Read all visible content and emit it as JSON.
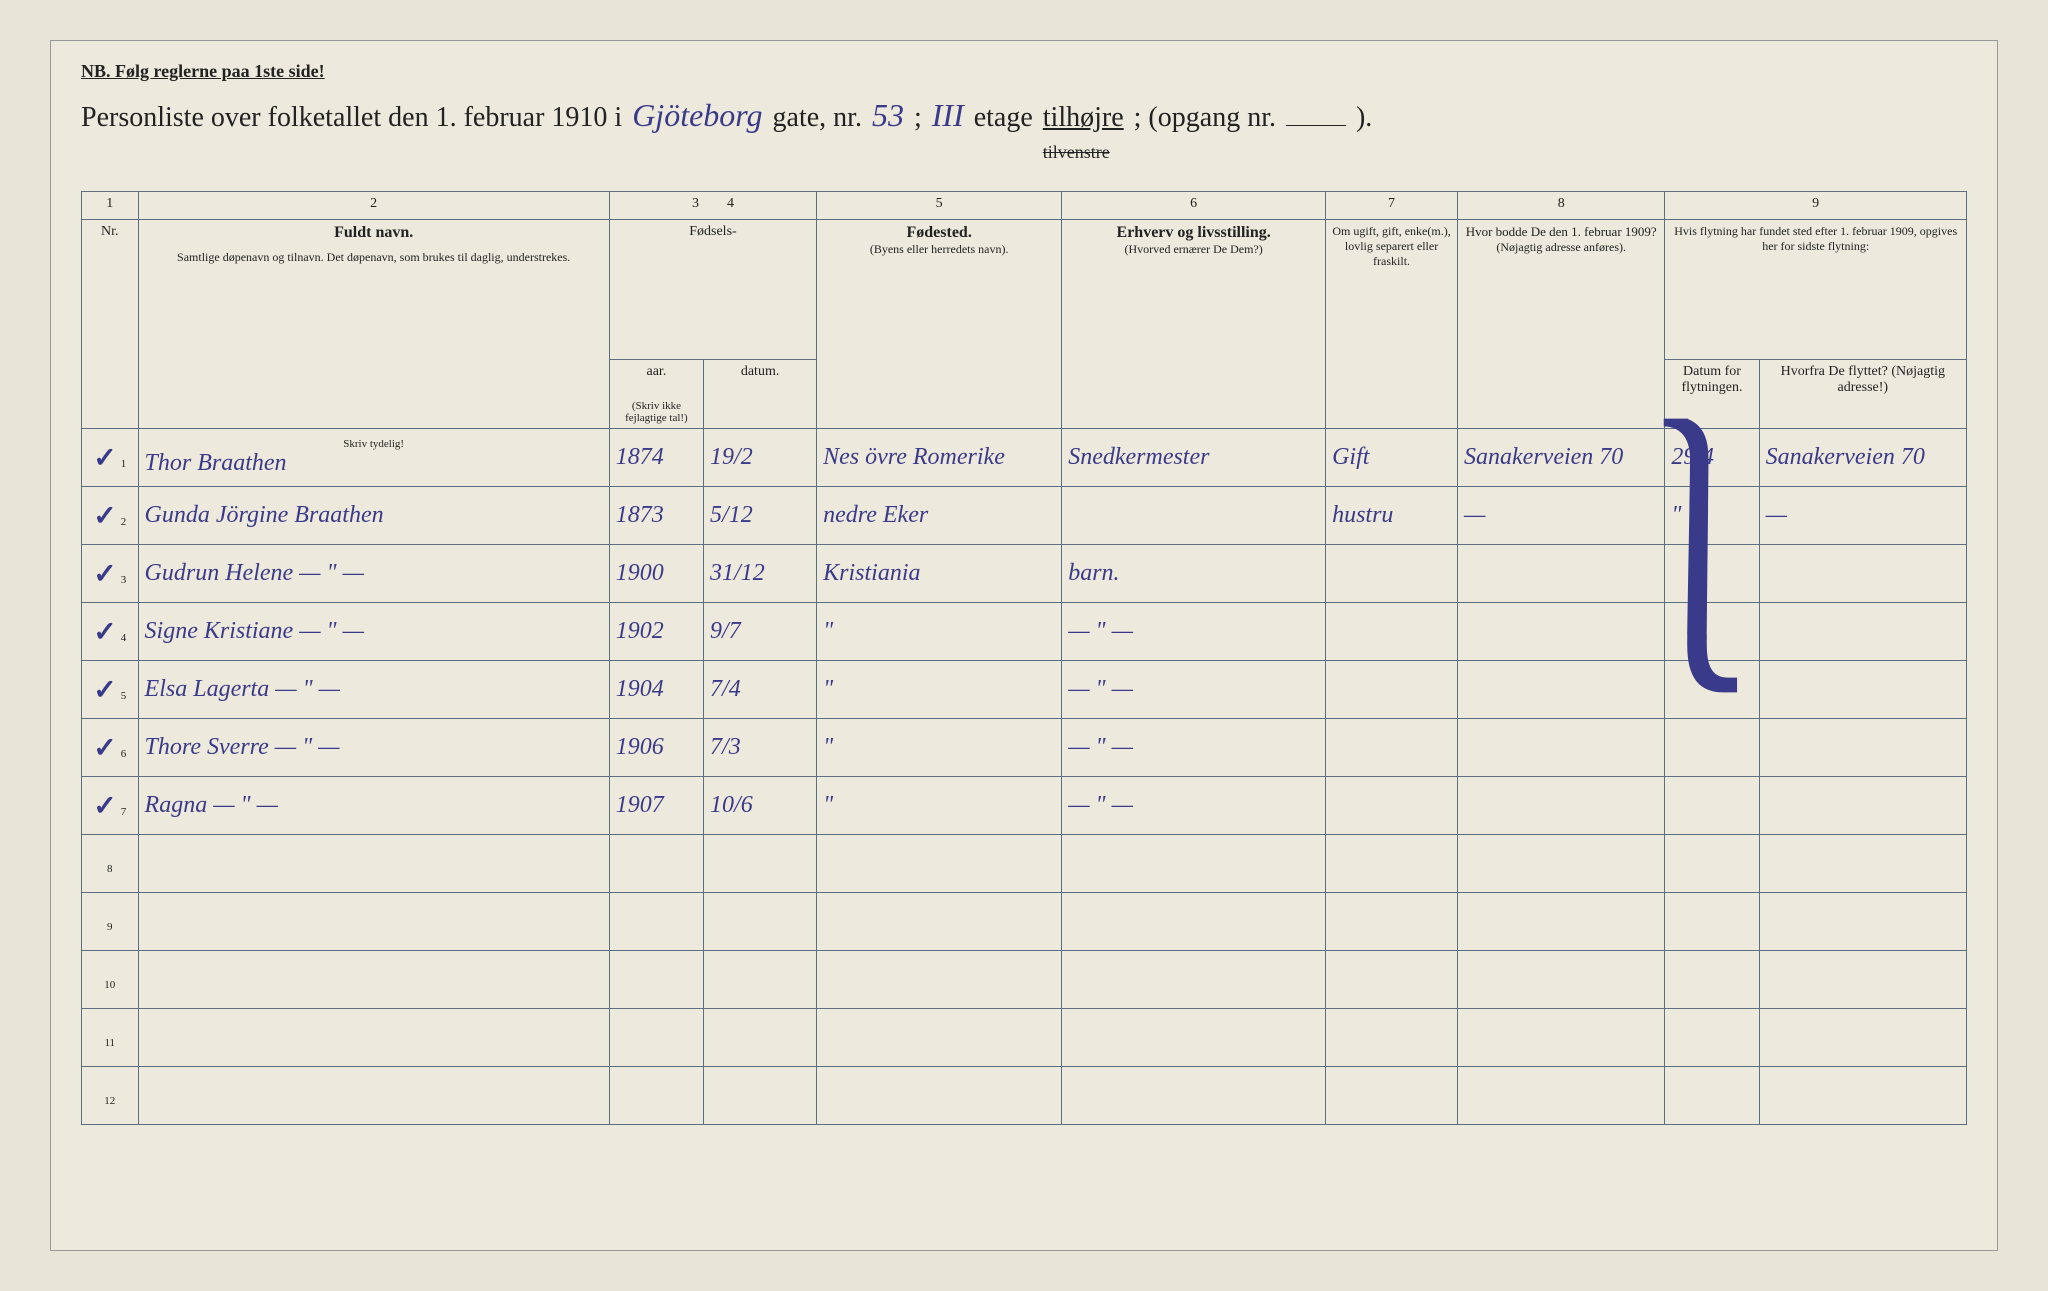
{
  "header_note": "NB.  Følg reglerne paa 1ste side!",
  "title": {
    "prefix": "Personliste over folketallet den 1. februar 1910 i",
    "street": "Gjöteborg",
    "street_label": "gate, nr.",
    "street_nr": "53",
    "semicolon": ";",
    "floor": "III",
    "floor_label": "etage",
    "side_kept": "tilhøjre",
    "side_struck": "tilvenstre",
    "opgang_label": "; (opgang nr.",
    "opgang": "",
    "close": ")."
  },
  "col_nums": [
    "1",
    "2",
    "3",
    "4",
    "5",
    "6",
    "7",
    "8",
    "9"
  ],
  "headers": {
    "nr": "Nr.",
    "name_bold": "Fuldt navn.",
    "name_sub": "Samtlige døpenavn og tilnavn. Det døpenavn, som brukes til daglig, understrekes.",
    "name_hint": "Skriv tydelig!",
    "birth": "Fødsels-",
    "birth_year": "aar.",
    "birth_date": "datum.",
    "birth_hint": "(Skriv ikke fejlagtige tal!)",
    "birthplace": "Fødested.",
    "birthplace_sub": "(Byens eller herredets navn).",
    "occupation": "Erhverv og livsstilling.",
    "occupation_sub": "(Hvorved ernærer De Dem?)",
    "marital": "Om ugift, gift, enke(m.), lovlig separert eller fraskilt.",
    "addr1909": "Hvor bodde De den 1. februar 1909?",
    "addr1909_sub": "(Nøjagtig adresse anføres).",
    "moved": "Hvis flytning har fundet sted efter 1. februar 1909, opgives her for sidste flytning:",
    "moved_date": "Datum for flytningen.",
    "moved_from": "Hvorfra De flyttet? (Nøjagtig adresse!)"
  },
  "rows": [
    {
      "nr": "1",
      "check": "✓",
      "name": "Thor Braathen",
      "year": "1874",
      "date": "19/2",
      "birthplace": "Nes övre Romerike",
      "occupation": "Snedkermester",
      "marital": "Gift",
      "addr1909": "Sanakerveien 70",
      "moved_date": "29/4",
      "moved_from": "Sanakerveien 70"
    },
    {
      "nr": "2",
      "check": "✓",
      "name": "Gunda Jörgine Braathen",
      "year": "1873",
      "date": "5/12",
      "birthplace": "nedre Eker",
      "occupation": "",
      "marital": "hustru",
      "addr1909": "—",
      "moved_date": "\"",
      "moved_from": "—"
    },
    {
      "nr": "3",
      "check": "✓",
      "name": "Gudrun Helene  — \" —",
      "year": "1900",
      "date": "31/12",
      "birthplace": "Kristiania",
      "occupation": "barn.",
      "marital": "",
      "addr1909": "",
      "moved_date": "",
      "moved_from": ""
    },
    {
      "nr": "4",
      "check": "✓",
      "name": "Signe Kristiane  — \" —",
      "year": "1902",
      "date": "9/7",
      "birthplace": "\"",
      "occupation": "— \" —",
      "marital": "",
      "addr1909": "",
      "moved_date": "",
      "moved_from": ""
    },
    {
      "nr": "5",
      "check": "✓",
      "name": "Elsa Lagerta  — \" —",
      "year": "1904",
      "date": "7/4",
      "birthplace": "\"",
      "occupation": "— \" —",
      "marital": "",
      "addr1909": "",
      "moved_date": "",
      "moved_from": ""
    },
    {
      "nr": "6",
      "check": "✓",
      "name": "Thore Sverre  — \" —",
      "year": "1906",
      "date": "7/3",
      "birthplace": "\"",
      "occupation": "— \" —",
      "marital": "",
      "addr1909": "",
      "moved_date": "",
      "moved_from": ""
    },
    {
      "nr": "7",
      "check": "✓",
      "name": "Ragna  — \" —",
      "year": "1907",
      "date": "10/6",
      "birthplace": "\"",
      "occupation": "— \" —",
      "marital": "",
      "addr1909": "",
      "moved_date": "",
      "moved_from": ""
    },
    {
      "nr": "8",
      "check": "",
      "name": "",
      "year": "",
      "date": "",
      "birthplace": "",
      "occupation": "",
      "marital": "",
      "addr1909": "",
      "moved_date": "",
      "moved_from": ""
    },
    {
      "nr": "9",
      "check": "",
      "name": "",
      "year": "",
      "date": "",
      "birthplace": "",
      "occupation": "",
      "marital": "",
      "addr1909": "",
      "moved_date": "",
      "moved_from": ""
    },
    {
      "nr": "10",
      "check": "",
      "name": "",
      "year": "",
      "date": "",
      "birthplace": "",
      "occupation": "",
      "marital": "",
      "addr1909": "",
      "moved_date": "",
      "moved_from": ""
    },
    {
      "nr": "11",
      "check": "",
      "name": "",
      "year": "",
      "date": "",
      "birthplace": "",
      "occupation": "",
      "marital": "",
      "addr1909": "",
      "moved_date": "",
      "moved_from": ""
    },
    {
      "nr": "12",
      "check": "",
      "name": "",
      "year": "",
      "date": "",
      "birthplace": "",
      "occupation": "",
      "marital": "",
      "addr1909": "",
      "moved_date": "",
      "moved_from": ""
    }
  ],
  "col_widths": {
    "nr": "3%",
    "name": "25%",
    "year": "5%",
    "date": "6%",
    "birthplace": "13%",
    "occupation": "14%",
    "marital": "7%",
    "addr1909": "11%",
    "moved_date": "5%",
    "moved_from": "11%"
  },
  "colors": {
    "page_bg": "#ede9dc",
    "border": "#5a7080",
    "ink_printed": "#222",
    "ink_hand": "#3a3a8a"
  }
}
